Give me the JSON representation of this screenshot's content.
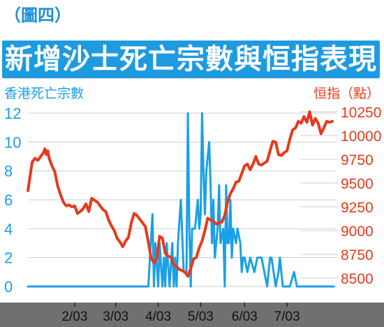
{
  "figure_label": "（圖四）",
  "title": "新增沙士死亡宗數與恒指表現",
  "colors": {
    "blue": "#1aa0e6",
    "red": "#e63a1c",
    "axis_bg": "#707070",
    "grid": "#cfcfcf",
    "title_bg": "#1e9be0"
  },
  "chart_data": {
    "type": "line",
    "title": "新增沙士死亡宗數與恒指表現",
    "x_tick_labels": [
      "2/03",
      "3/03",
      "4/03",
      "5/03",
      "6/03",
      "7/03"
    ],
    "x_ticks": [
      33,
      62,
      92,
      122,
      153,
      183
    ],
    "x_range": [
      0,
      216
    ],
    "left_axis": {
      "label": "香港死亡宗數",
      "ylim": [
        0,
        12
      ],
      "ticks": [
        0,
        2,
        4,
        6,
        8,
        10,
        12
      ]
    },
    "right_axis": {
      "label": "恒指（點）",
      "ylim": [
        8400,
        10350
      ],
      "ticks": [
        8500,
        8750,
        9000,
        9250,
        9500,
        9750,
        10000,
        10250
      ]
    },
    "grid": "horizontal",
    "series": [
      {
        "name": "香港死亡宗數",
        "axis": "left",
        "color": "#1aa0e6",
        "x": [
          0,
          80,
          85,
          88,
          89,
          90,
          92,
          93,
          95,
          96,
          97,
          98,
          100,
          102,
          103,
          104,
          105,
          106,
          108,
          110,
          111,
          112,
          113,
          114,
          115,
          116,
          117,
          118,
          120,
          121,
          122,
          123,
          124,
          125,
          126,
          128,
          129,
          130,
          131,
          132,
          134,
          135,
          136,
          138,
          139,
          140,
          141,
          142,
          143,
          144,
          145,
          147,
          148,
          150,
          151,
          152,
          153,
          155,
          157,
          160,
          162,
          163,
          165,
          167,
          169,
          170,
          171,
          172,
          175,
          177,
          178,
          180,
          183,
          185,
          188,
          190,
          195,
          200,
          206,
          210,
          216
        ],
        "y": [
          0,
          0,
          0,
          5,
          0,
          3,
          0,
          3,
          0,
          2,
          0,
          3,
          0,
          3,
          0,
          2,
          0,
          3,
          6,
          1,
          1,
          1,
          12,
          4,
          0,
          4,
          4,
          4,
          6,
          4,
          5,
          12,
          8,
          5,
          8,
          10,
          7,
          3,
          6,
          2,
          4,
          7,
          3,
          4,
          0,
          7,
          3,
          3,
          6,
          2,
          4,
          3,
          4,
          3,
          1,
          2,
          2,
          1,
          2,
          1,
          2,
          2,
          2,
          1,
          0,
          1,
          2,
          2,
          0,
          1,
          2,
          0,
          0,
          0,
          1,
          0,
          0,
          0,
          0,
          0,
          0
        ]
      },
      {
        "name": "恒指（點）",
        "axis": "right",
        "color": "#e63a1c",
        "x": [
          0,
          3,
          5,
          7,
          9,
          11,
          12,
          13,
          14,
          15,
          17,
          19,
          21,
          23,
          25,
          27,
          29,
          31,
          33,
          35,
          37,
          39,
          41,
          43,
          45,
          47,
          49,
          51,
          53,
          55,
          57,
          59,
          61,
          63,
          65,
          67,
          69,
          71,
          73,
          75,
          77,
          79,
          81,
          83,
          85,
          87,
          89,
          91,
          93,
          95,
          97,
          99,
          101,
          103,
          105,
          107,
          109,
          111,
          113,
          115,
          117,
          119,
          121,
          123,
          125,
          127,
          129,
          131,
          133,
          135,
          137,
          139,
          141,
          143,
          145,
          147,
          149,
          151,
          153,
          155,
          157,
          159,
          161,
          163,
          165,
          167,
          169,
          171,
          173,
          175,
          177,
          179,
          181,
          183,
          185,
          187,
          189,
          191,
          193,
          195,
          197,
          199,
          201,
          203,
          205,
          207,
          209,
          211,
          213,
          215
        ],
        "y": [
          9420,
          9720,
          9760,
          9740,
          9780,
          9820,
          9860,
          9800,
          9840,
          9760,
          9680,
          9620,
          9470,
          9380,
          9300,
          9260,
          9270,
          9250,
          9260,
          9180,
          9200,
          9230,
          9280,
          9200,
          9340,
          9320,
          9300,
          9260,
          9220,
          9200,
          9110,
          9050,
          9000,
          8920,
          8880,
          8830,
          8890,
          8930,
          9080,
          9180,
          9160,
          9120,
          9080,
          9040,
          8880,
          8710,
          8660,
          8700,
          8940,
          8920,
          8760,
          8730,
          8720,
          8640,
          8620,
          8590,
          8580,
          8560,
          8520,
          8600,
          8700,
          8720,
          8820,
          8890,
          9000,
          9130,
          9110,
          9100,
          9070,
          9080,
          9090,
          9160,
          9300,
          9390,
          9440,
          9510,
          9520,
          9600,
          9680,
          9700,
          9640,
          9700,
          9780,
          9700,
          9690,
          9710,
          9730,
          9840,
          9940,
          9930,
          9800,
          9790,
          9820,
          9840,
          9960,
          10060,
          10080,
          10150,
          10130,
          10200,
          10140,
          10250,
          10110,
          10180,
          10130,
          10020,
          10080,
          10150,
          10140,
          10150
        ]
      }
    ]
  }
}
